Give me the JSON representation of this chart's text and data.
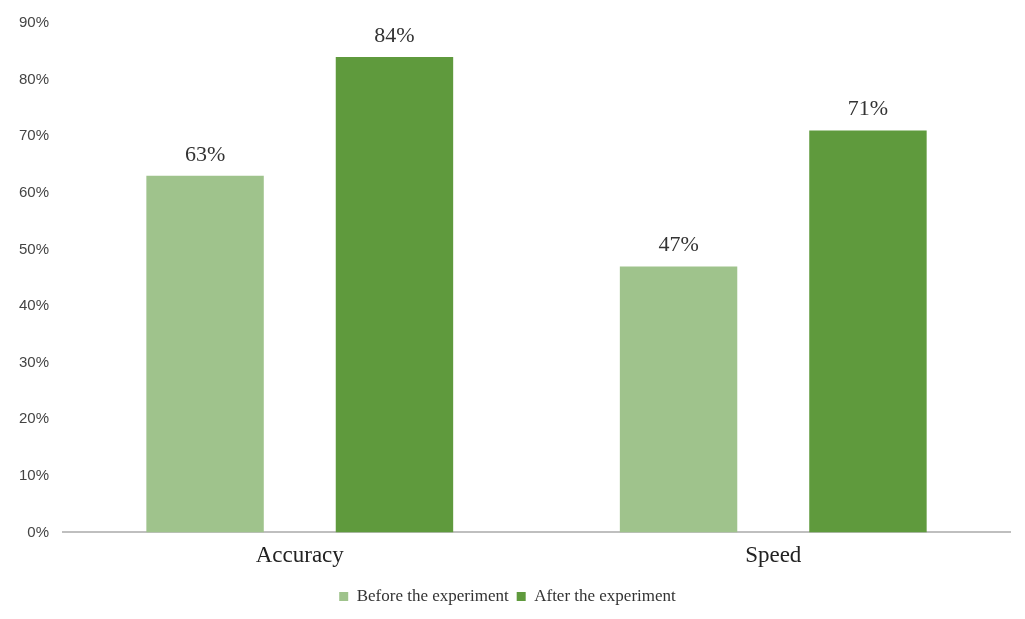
{
  "chart_data": {
    "type": "bar",
    "categories": [
      "Accuracy",
      "Speed"
    ],
    "series": [
      {
        "name": "Before the experiment",
        "color": "#9fc38c",
        "values": [
          63,
          47
        ],
        "value_labels": [
          "63%",
          "47%"
        ]
      },
      {
        "name": "After the experiment",
        "color": "#5f9a3d",
        "values": [
          84,
          71
        ],
        "value_labels": [
          "84%",
          "71%"
        ]
      }
    ],
    "ylim": [
      0,
      90
    ],
    "yticks": [
      {
        "value": 0,
        "label": "0%"
      },
      {
        "value": 10,
        "label": "10%"
      },
      {
        "value": 20,
        "label": "20%"
      },
      {
        "value": 30,
        "label": "30%"
      },
      {
        "value": 40,
        "label": "40%"
      },
      {
        "value": 50,
        "label": "50%"
      },
      {
        "value": 60,
        "label": "60%"
      },
      {
        "value": 70,
        "label": "70%"
      },
      {
        "value": 80,
        "label": "80%"
      },
      {
        "value": 90,
        "label": "90%"
      }
    ],
    "grid": false,
    "legend": "bottom"
  }
}
